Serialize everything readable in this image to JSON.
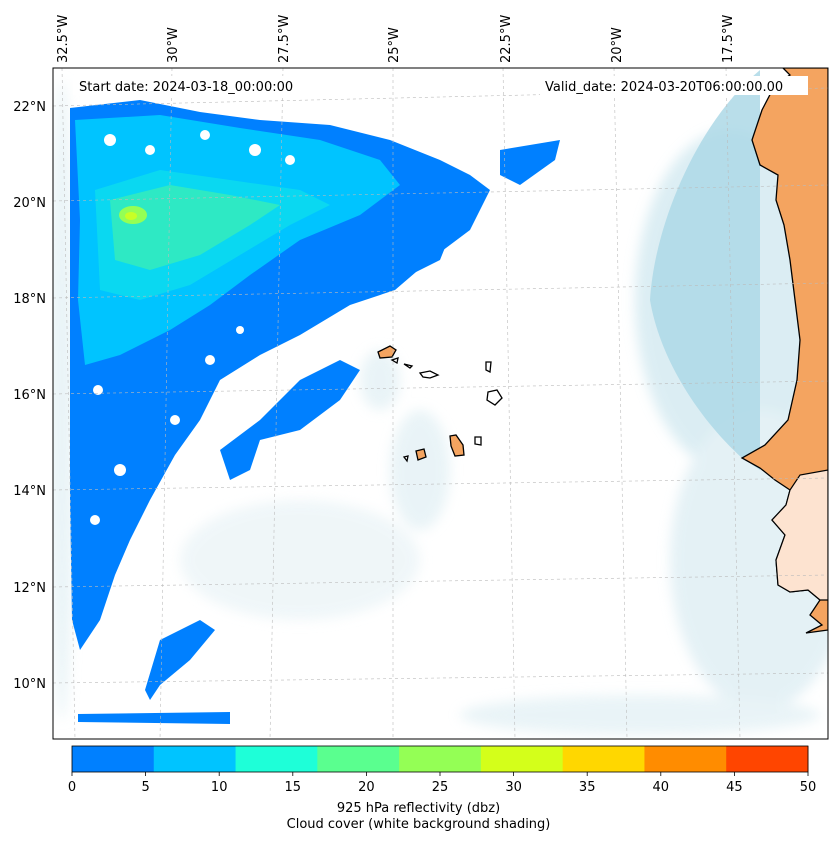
{
  "map": {
    "start_date_label": "Start date: 2024-03-18_00:00:00",
    "valid_date_label": "Valid_date: 2024-03-20T06:00:00.00",
    "lon_labels": [
      "32.5°W",
      "30°W",
      "27.5°W",
      "25°W",
      "22.5°W",
      "20°W",
      "17.5°W"
    ],
    "lat_labels": [
      "22°N",
      "20°N",
      "18°N",
      "16°N",
      "14°N",
      "12°N",
      "10°N"
    ],
    "land_color": "#f4a460",
    "cloud_color": "#add8e6"
  },
  "colorbar": {
    "ticks": [
      "0",
      "5",
      "10",
      "15",
      "20",
      "25",
      "30",
      "35",
      "40",
      "45",
      "50"
    ],
    "colors": [
      "#0080ff",
      "#00c4ff",
      "#1effd8",
      "#5aff8f",
      "#94ff55",
      "#d4ff1a",
      "#ffd700",
      "#ff8c00",
      "#ff4500"
    ],
    "label_line1": "925 hPa reflectivity (dbz)",
    "label_line2": "Cloud cover (white background shading)"
  }
}
